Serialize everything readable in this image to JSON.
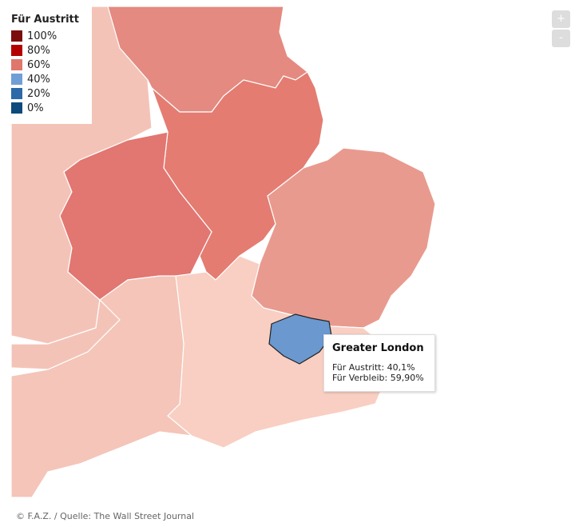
{
  "legend": {
    "title": "Für Austritt",
    "items": [
      {
        "label": "100%",
        "color": "#7b0d0d"
      },
      {
        "label": "80%",
        "color": "#b30000"
      },
      {
        "label": "60%",
        "color": "#e0776d"
      },
      {
        "label": "40%",
        "color": "#6f9fd6"
      },
      {
        "label": "20%",
        "color": "#2b69a8"
      },
      {
        "label": "0%",
        "color": "#0c4a7e"
      }
    ]
  },
  "tooltip": {
    "title": "Greater London",
    "lines": [
      "Für Austritt: 40,1%",
      "Für Verbleib: 59,90%"
    ]
  },
  "zoom": {
    "in": "+",
    "out": "-"
  },
  "footer": "© F.A.Z. / Quelle: The Wall Street Journal"
}
